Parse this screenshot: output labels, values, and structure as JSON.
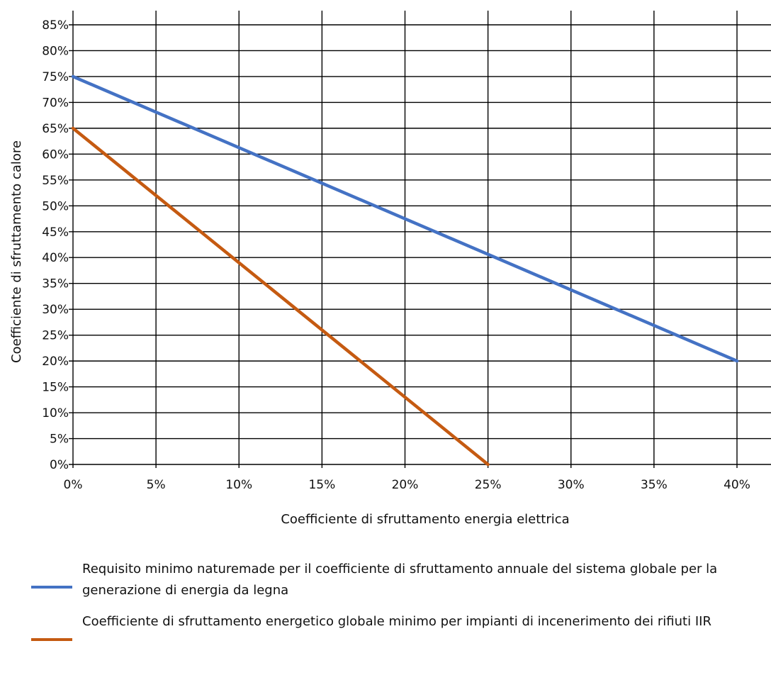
{
  "chart_data": {
    "type": "line",
    "xlabel": "Coefficiente di sfruttamento energia elettrica",
    "ylabel": "Coefficiente di sfruttamento calore",
    "x_ticks": [
      "0%",
      "5%",
      "10%",
      "15%",
      "20%",
      "25%",
      "30%",
      "35%",
      "40%"
    ],
    "y_ticks": [
      "0%",
      "5%",
      "10%",
      "15%",
      "20%",
      "25%",
      "30%",
      "35%",
      "40%",
      "45%",
      "50%",
      "55%",
      "60%",
      "65%",
      "70%",
      "75%",
      "80%",
      "85%"
    ],
    "xlim": [
      0,
      40
    ],
    "ylim": [
      0,
      85
    ],
    "grid": true,
    "legend_position": "bottom",
    "series": [
      {
        "name": "Requisito minimo naturemade per il coefficiente di sfruttamento annuale del sistema globale per la generazione di energia da legna",
        "color": "#4472C4",
        "x": [
          0,
          40
        ],
        "y": [
          75,
          20
        ]
      },
      {
        "name": "Coefficiente di sfruttamento energetico globale minimo per impianti di incenerimento dei rifiuti IIR",
        "color": "#C55A11",
        "x": [
          0,
          25
        ],
        "y": [
          65,
          0
        ]
      }
    ]
  }
}
